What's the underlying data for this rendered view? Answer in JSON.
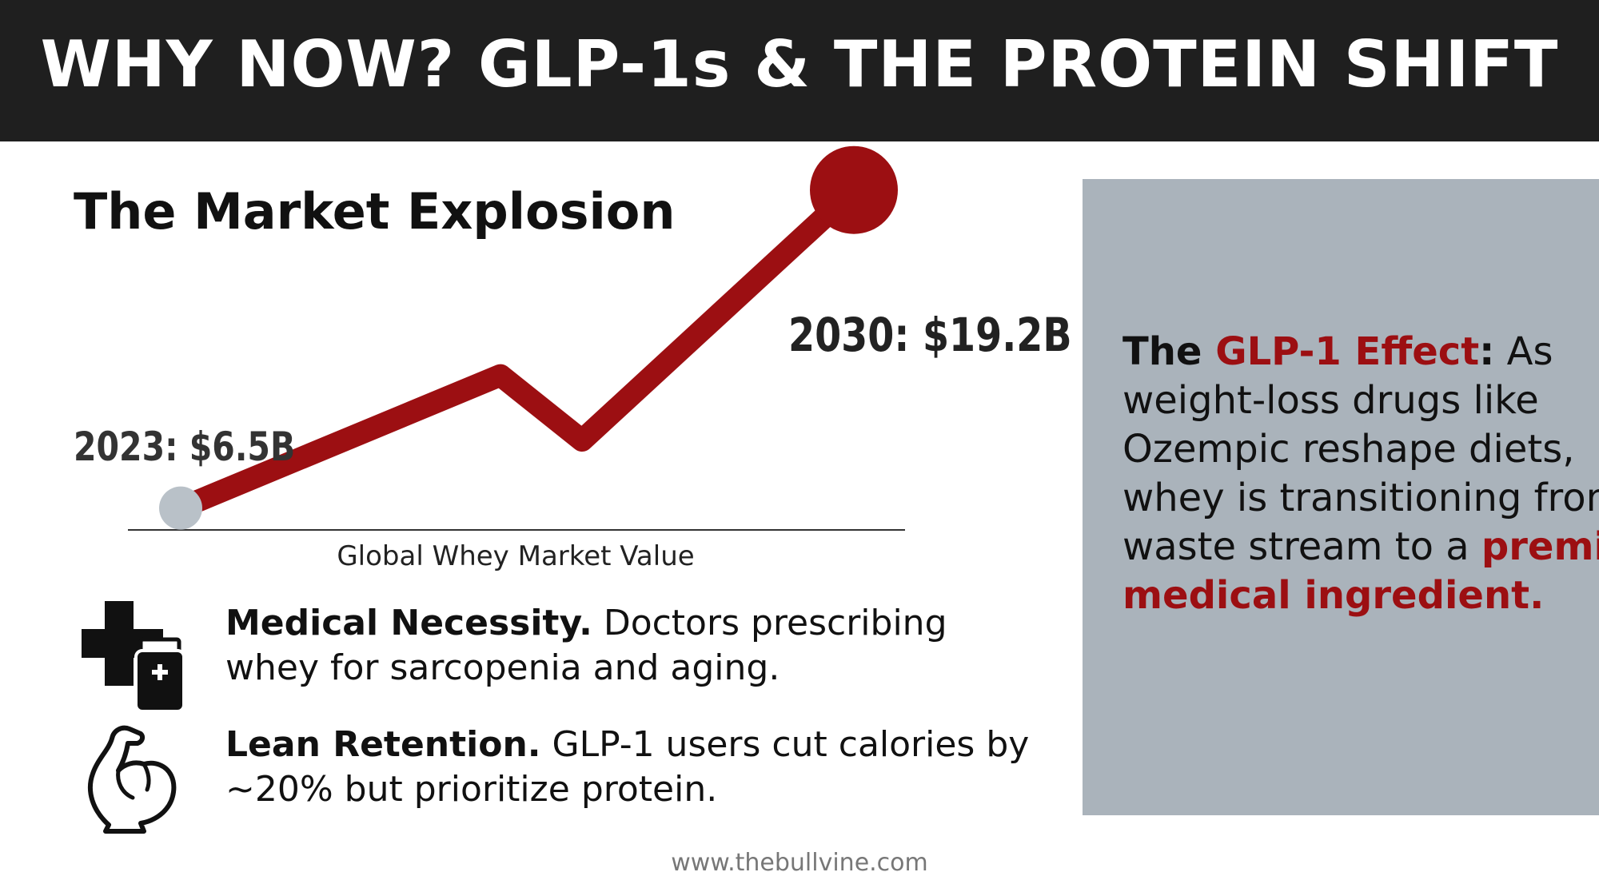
{
  "header": {
    "title": "WHY NOW? GLP-1s & THE PROTEIN SHIFT"
  },
  "colors": {
    "accent": "#9c0f12",
    "start_marker": "#b9c1c8",
    "panel_bg": "#aab3bb",
    "header_bg": "#1f1f1f"
  },
  "chart_data": {
    "type": "line",
    "title": "The Market Explosion",
    "xlabel": "Global Whey Market Value",
    "ylabel": "",
    "x": [
      "2023",
      "",
      "",
      "2030"
    ],
    "series": [
      {
        "values": [
          6.5,
          11.8,
          9.2,
          19.2
        ]
      }
    ],
    "ylim": [
      5.5,
      20.5
    ],
    "grid": false,
    "legend": "none",
    "data_labels": {
      "start": "2023: $6.5B",
      "end": "2030: $19.2B"
    }
  },
  "features": [
    {
      "icon": "medical-cross-bottle-icon",
      "title": "Medical Necessity.",
      "text": " Doctors prescribing whey for sarcopenia and aging."
    },
    {
      "icon": "flexed-bicep-icon",
      "title": "Lean Retention.",
      "text": " GLP-1 users cut calories by ~20% but prioritize protein."
    }
  ],
  "panel": {
    "lead": "The ",
    "accent_1": "GLP-1 Effect",
    "colon": ":",
    "body": " As weight-loss drugs like Ozempic reshape diets, whey is transitioning from a waste stream to a ",
    "accent_2": "premium medical ingredient."
  },
  "footer": {
    "url": "www.thebullvine.com"
  }
}
